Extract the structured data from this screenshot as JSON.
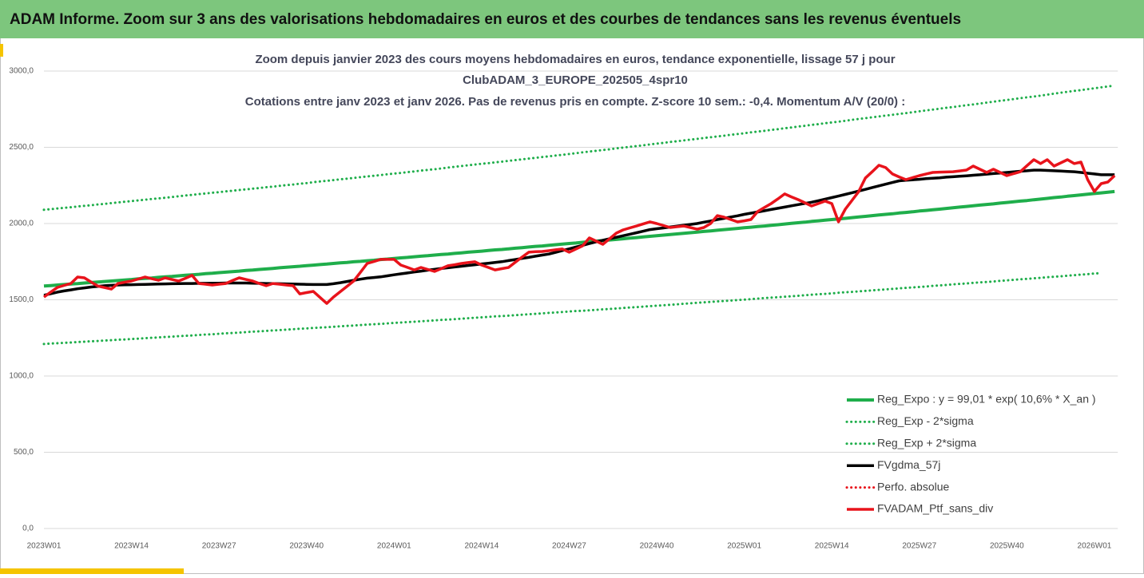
{
  "header": {
    "title": "ADAM Informe. Zoom sur 3 ans des valorisations hebdomadaires en euros et des courbes de tendances sans les revenus éventuels"
  },
  "chart_data": {
    "type": "line",
    "title": [
      "Zoom depuis janvier 2023 des cours moyens hebdomadaires  en euros, tendance exponentielle, lissage 57 j pour",
      "ClubADAM_3_EUROPE_202505_4spr10",
      "Cotations entre janv 2023 et janv 2026. Pas de revenus pris en compte. Z-score 10 sem.: -0,4. Momentum A/V (20/0) :"
    ],
    "categories": [
      "2023W01",
      null,
      null,
      null,
      null,
      null,
      null,
      null,
      null,
      null,
      null,
      null,
      null,
      "2023W14",
      null,
      null,
      null,
      null,
      null,
      null,
      null,
      null,
      null,
      null,
      null,
      null,
      "2023W27",
      null,
      null,
      null,
      null,
      null,
      null,
      null,
      null,
      null,
      null,
      null,
      null,
      "2023W40",
      null,
      null,
      null,
      null,
      null,
      null,
      null,
      null,
      null,
      null,
      null,
      null,
      "2024W01",
      null,
      null,
      null,
      null,
      null,
      null,
      null,
      null,
      null,
      null,
      null,
      null,
      "2024W14",
      null,
      null,
      null,
      null,
      null,
      null,
      null,
      null,
      null,
      null,
      null,
      null,
      "2024W27",
      null,
      null,
      null,
      null,
      null,
      null,
      null,
      null,
      null,
      null,
      null,
      null,
      "2024W40",
      null,
      null,
      null,
      null,
      null,
      null,
      null,
      null,
      null,
      null,
      null,
      null,
      "2025W01",
      null,
      null,
      null,
      null,
      null,
      null,
      null,
      null,
      null,
      null,
      null,
      null,
      "2025W14",
      null,
      null,
      null,
      null,
      null,
      null,
      null,
      null,
      null,
      null,
      null,
      null,
      "2025W27",
      null,
      null,
      null,
      null,
      null,
      null,
      null,
      null,
      null,
      null,
      null,
      null,
      "2025W40",
      null,
      null,
      null,
      null,
      null,
      null,
      null,
      null,
      null,
      null,
      null,
      null,
      "2026W01",
      null,
      null,
      null
    ],
    "ylim": [
      0,
      3000
    ],
    "yticks": [
      {
        "value": 0,
        "label": "0,0"
      },
      {
        "value": 500,
        "label": "500,0"
      },
      {
        "value": 1000,
        "label": "1000,0"
      },
      {
        "value": 1500,
        "label": "1500,0"
      },
      {
        "value": 2000,
        "label": "2000,0"
      },
      {
        "value": 2500,
        "label": "2500,0"
      },
      {
        "value": 3000,
        "label": "3000,0"
      }
    ],
    "grid": true,
    "legend": "lower right",
    "series": [
      {
        "name": "Reg_Expo : y = 99,01 * exp( 10,6% *  X_an )",
        "color": "#1fae4b",
        "style": "solid",
        "values": [
          1590,
          1593,
          1597,
          1600,
          1603,
          1606,
          1610,
          1613,
          1616,
          1620,
          1623,
          1626,
          1630,
          1633,
          1637,
          1640,
          1643,
          1647,
          1650,
          1653,
          1657,
          1661,
          1664,
          1667,
          1671,
          1674,
          1678,
          1681,
          1685,
          1688,
          1692,
          1695,
          1699,
          1702,
          1706,
          1710,
          1713,
          1717,
          1720,
          1724,
          1727,
          1731,
          1734,
          1738,
          1742,
          1745,
          1749,
          1752,
          1756,
          1759,
          1764,
          1767,
          1771,
          1775,
          1778,
          1782,
          1786,
          1789,
          1793,
          1797,
          1800,
          1804,
          1808,
          1812,
          1815,
          1819,
          1823,
          1827,
          1830,
          1834,
          1838,
          1842,
          1846,
          1850,
          1853,
          1857,
          1861,
          1865,
          1869,
          1872,
          1877,
          1881,
          1885,
          1888,
          1892,
          1896,
          1900,
          1904,
          1908,
          1912,
          1916,
          1920,
          1924,
          1928,
          1932,
          1936,
          1940,
          1944,
          1948,
          1952,
          1956,
          1960,
          1964,
          1968,
          1972,
          1976,
          1980,
          1984,
          1988,
          1992,
          1997,
          2001,
          2005,
          2009,
          2014,
          2018,
          2022,
          2026,
          2030,
          2034,
          2039,
          2043,
          2047,
          2052,
          2056,
          2060,
          2064,
          2069,
          2073,
          2077,
          2082,
          2086,
          2090,
          2094,
          2099,
          2103,
          2108,
          2112,
          2116,
          2121,
          2125,
          2129,
          2134,
          2138,
          2143,
          2147,
          2151,
          2156,
          2160,
          2165,
          2170,
          2174,
          2179,
          2183,
          2188,
          2192,
          2197,
          2201,
          2206,
          2210
        ]
      },
      {
        "name": "Reg_Exp - 2*sigma",
        "color": "#1fae4b",
        "style": "dotted",
        "values": [
          1210,
          1213,
          1215,
          1218,
          1220,
          1223,
          1225,
          1228,
          1230,
          1233,
          1235,
          1238,
          1240,
          1243,
          1245,
          1248,
          1251,
          1253,
          1256,
          1258,
          1261,
          1264,
          1266,
          1269,
          1272,
          1274,
          1277,
          1280,
          1282,
          1285,
          1288,
          1291,
          1293,
          1296,
          1299,
          1301,
          1304,
          1307,
          1310,
          1312,
          1315,
          1318,
          1320,
          1323,
          1326,
          1329,
          1331,
          1334,
          1337,
          1340,
          1342,
          1345,
          1348,
          1351,
          1354,
          1356,
          1359,
          1362,
          1365,
          1368,
          1370,
          1373,
          1376,
          1379,
          1382,
          1385,
          1388,
          1391,
          1393,
          1396,
          1399,
          1402,
          1405,
          1408,
          1411,
          1414,
          1417,
          1420,
          1423,
          1426,
          1428,
          1431,
          1434,
          1437,
          1440,
          1443,
          1446,
          1449,
          1452,
          1455,
          1458,
          1461,
          1464,
          1467,
          1470,
          1474,
          1477,
          1480,
          1483,
          1486,
          1489,
          1492,
          1495,
          1498,
          1501,
          1504,
          1508,
          1511,
          1514,
          1517,
          1520,
          1523,
          1526,
          1530,
          1533,
          1536,
          1539,
          1542,
          1546,
          1549,
          1552,
          1555,
          1558,
          1562,
          1565,
          1568,
          1571,
          1575,
          1578,
          1581,
          1584,
          1587,
          1591,
          1594,
          1597,
          1601,
          1604,
          1607,
          1611,
          1614,
          1617,
          1620,
          1624,
          1627,
          1631,
          1634,
          1637,
          1641,
          1644,
          1648,
          1651,
          1654,
          1658,
          1661,
          1665,
          1668,
          1672,
          1675,
          null,
          null
        ]
      },
      {
        "name": "Reg_Exp + 2*sigma",
        "color": "#1fae4b",
        "style": "dotted",
        "values": [
          2090,
          2094,
          2099,
          2103,
          2107,
          2112,
          2116,
          2120,
          2125,
          2129,
          2134,
          2138,
          2143,
          2147,
          2152,
          2156,
          2161,
          2165,
          2169,
          2174,
          2179,
          2184,
          2188,
          2193,
          2197,
          2202,
          2206,
          2211,
          2215,
          2220,
          2224,
          2229,
          2233,
          2238,
          2242,
          2247,
          2252,
          2256,
          2261,
          2265,
          2271,
          2276,
          2280,
          2285,
          2290,
          2294,
          2299,
          2304,
          2309,
          2313,
          2318,
          2323,
          2328,
          2332,
          2337,
          2342,
          2347,
          2352,
          2356,
          2361,
          2367,
          2372,
          2377,
          2382,
          2387,
          2392,
          2396,
          2401,
          2406,
          2411,
          2416,
          2421,
          2426,
          2431,
          2436,
          2441,
          2446,
          2451,
          2456,
          2461,
          2467,
          2472,
          2477,
          2482,
          2487,
          2493,
          2498,
          2503,
          2508,
          2513,
          2519,
          2524,
          2529,
          2535,
          2540,
          2545,
          2550,
          2555,
          2561,
          2566,
          2571,
          2576,
          2582,
          2587,
          2592,
          2598,
          2603,
          2608,
          2614,
          2619,
          2625,
          2630,
          2636,
          2641,
          2647,
          2652,
          2658,
          2663,
          2668,
          2674,
          2680,
          2686,
          2691,
          2697,
          2702,
          2708,
          2713,
          2719,
          2724,
          2730,
          2736,
          2742,
          2747,
          2753,
          2759,
          2764,
          2770,
          2776,
          2781,
          2787,
          2793,
          2799,
          2805,
          2810,
          2816,
          2822,
          2828,
          2833,
          2839,
          2845,
          2852,
          2858,
          2864,
          2870,
          2875,
          2881,
          2887,
          2893,
          2899,
          2905
        ]
      },
      {
        "name": "FVgdma_57j",
        "color": "#000000",
        "style": "solid",
        "values": [
          1530,
          1540,
          1550,
          1558,
          1565,
          1572,
          1578,
          1584,
          1588,
          1592,
          1595,
          1597,
          1598,
          1599,
          1600,
          1601,
          1602,
          1603,
          1604,
          1605,
          1606,
          1607,
          1607,
          1608,
          1608,
          1609,
          1609,
          1610,
          1610,
          1610,
          1610,
          1609,
          1608,
          1607,
          1606,
          1605,
          1604,
          1603,
          1602,
          1601,
          1600,
          1600,
          1600,
          1605,
          1612,
          1620,
          1628,
          1635,
          1642,
          1646,
          1650,
          1657,
          1664,
          1670,
          1676,
          1682,
          1688,
          1694,
          1700,
          1705,
          1710,
          1715,
          1720,
          1725,
          1730,
          1735,
          1740,
          1745,
          1750,
          1757,
          1764,
          1771,
          1778,
          1786,
          1793,
          1800,
          1811,
          1823,
          1834,
          1846,
          1857,
          1869,
          1880,
          1890,
          1900,
          1910,
          1920,
          1930,
          1940,
          1950,
          1960,
          1966,
          1971,
          1977,
          1983,
          1989,
          1994,
          2000,
          2009,
          2017,
          2026,
          2034,
          2043,
          2051,
          2060,
          2068,
          2076,
          2084,
          2092,
          2100,
          2108,
          2116,
          2124,
          2132,
          2140,
          2150,
          2160,
          2170,
          2180,
          2191,
          2202,
          2213,
          2224,
          2236,
          2247,
          2258,
          2269,
          2280,
          2284,
          2287,
          2290,
          2294,
          2297,
          2300,
          2304,
          2307,
          2310,
          2313,
          2317,
          2320,
          2324,
          2328,
          2331,
          2335,
          2339,
          2343,
          2346,
          2350,
          2350,
          2348,
          2346,
          2344,
          2342,
          2340,
          2335,
          2330,
          2325,
          2320,
          2320,
          2320
        ]
      },
      {
        "name": "Perfo. absolue",
        "color": "#e8131b",
        "style": "dotted",
        "values": [
          null,
          null,
          null,
          null,
          null,
          null,
          null,
          null,
          null,
          null,
          null,
          null,
          null,
          null,
          null,
          null,
          null,
          null,
          null,
          null,
          null,
          null,
          null,
          null,
          null,
          null,
          null,
          null,
          null,
          null,
          null,
          null,
          null,
          null,
          null,
          null,
          null,
          null,
          null,
          null,
          null,
          null,
          null,
          null,
          null,
          null,
          null,
          null,
          null,
          null,
          null,
          null,
          null,
          null,
          null,
          null,
          null,
          null,
          null,
          null,
          null,
          null,
          null,
          null,
          null,
          null,
          null,
          null,
          null,
          null,
          null,
          null,
          null,
          null,
          null,
          null,
          null,
          null,
          null,
          null,
          null,
          null,
          null,
          null,
          null,
          null,
          null,
          null,
          null,
          null,
          null,
          null,
          null,
          null,
          null,
          null,
          null,
          null,
          null,
          null,
          null,
          null,
          null,
          null,
          null,
          null,
          null,
          null,
          null,
          null,
          null,
          null,
          null,
          null,
          null,
          null,
          null,
          null,
          null,
          null,
          null,
          null,
          null,
          null,
          null,
          null,
          null,
          null,
          null,
          null,
          null,
          null,
          null,
          null,
          null,
          null,
          null,
          null,
          null,
          null,
          null,
          null,
          null,
          null,
          null,
          null,
          null,
          null,
          null,
          null,
          null,
          null,
          null,
          null,
          null,
          null,
          null,
          null,
          null,
          null
        ]
      },
      {
        "name": "FVADAM_Ptf_sans_div",
        "color": "#e8131b",
        "style": "solid",
        "values": [
          1518,
          1550,
          1581,
          1594,
          1607,
          1649,
          1644,
          1617,
          1590,
          1580,
          1570,
          1607,
          1615,
          1623,
          1636,
          1649,
          1638,
          1628,
          1644,
          1633,
          1623,
          1641,
          1660,
          1607,
          1602,
          1597,
          1602,
          1607,
          1626,
          1644,
          1633,
          1623,
          1607,
          1592,
          1607,
          1602,
          1597,
          1592,
          1539,
          1547,
          1555,
          1515,
          1476,
          1518,
          1553,
          1588,
          1623,
          1680,
          1738,
          1751,
          1765,
          1765,
          1765,
          1728,
          1712,
          1696,
          1712,
          1699,
          1686,
          1704,
          1723,
          1730,
          1738,
          1744,
          1749,
          1728,
          1712,
          1696,
          1704,
          1712,
          1746,
          1780,
          1812,
          1815,
          1817,
          1822,
          1828,
          1833,
          1812,
          1833,
          1854,
          1906,
          1885,
          1864,
          1900,
          1937,
          1958,
          1971,
          1984,
          1998,
          2011,
          2000,
          1987,
          1974,
          1979,
          1984,
          1974,
          1963,
          1974,
          2000,
          2052,
          2042,
          2026,
          2011,
          2018,
          2026,
          2079,
          2105,
          2131,
          2162,
          2194,
          2175,
          2157,
          2136,
          2115,
          2131,
          2147,
          2131,
          2011,
          2094,
          2152,
          2210,
          2299,
          2340,
          2382,
          2367,
          2325,
          2306,
          2288,
          2301,
          2314,
          2325,
          2335,
          2337,
          2338,
          2340,
          2345,
          2351,
          2377,
          2356,
          2335,
          2356,
          2335,
          2314,
          2327,
          2340,
          2380,
          2419,
          2393,
          2419,
          2377,
          2398,
          2419,
          2393,
          2403,
          2288,
          2210,
          2262,
          2272,
          2314
        ]
      }
    ]
  }
}
